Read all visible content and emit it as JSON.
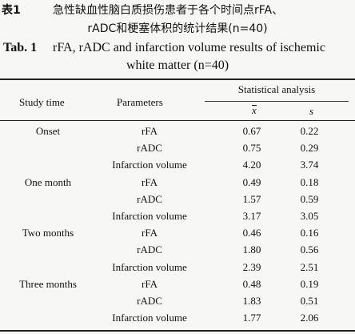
{
  "caption_cn": {
    "label": "表1",
    "line1": "急性缺血性脑白质损伤患者于各个时间点rFA、",
    "line2": "rADC和梗塞体积的统计结果(n=40)"
  },
  "caption_en": {
    "label": "Tab. 1",
    "line1": "rFA, rADC and infarction volume results of ischemic",
    "line2": "white matter (n=40)"
  },
  "headers": {
    "study_time": "Study time",
    "parameters": "Parameters",
    "statistical_analysis": "Statistical analysis",
    "mean": "x",
    "sd": "s"
  },
  "groups": [
    "Onset",
    "One month",
    "Two months",
    "Three months"
  ],
  "rows": [
    {
      "param": "rFA",
      "x": "0.67",
      "s": "0.22"
    },
    {
      "param": "rADC",
      "x": "0.75",
      "s": "0.29"
    },
    {
      "param": "Infarction volume",
      "x": "4.20",
      "s": "3.74"
    },
    {
      "param": "rFA",
      "x": "0.49",
      "s": "0.18"
    },
    {
      "param": "rADC",
      "x": "1.57",
      "s": "0.59"
    },
    {
      "param": "Infarction volume",
      "x": "3.17",
      "s": "3.05"
    },
    {
      "param": "rFA",
      "x": "0.46",
      "s": "0.16"
    },
    {
      "param": "rADC",
      "x": "1.80",
      "s": "0.56"
    },
    {
      "param": "Infarction volume",
      "x": "2.39",
      "s": "2.51"
    },
    {
      "param": "rFA",
      "x": "0.48",
      "s": "0.19"
    },
    {
      "param": "rADC",
      "x": "1.83",
      "s": "0.51"
    },
    {
      "param": "Infarction volume",
      "x": "1.77",
      "s": "2.06"
    }
  ]
}
